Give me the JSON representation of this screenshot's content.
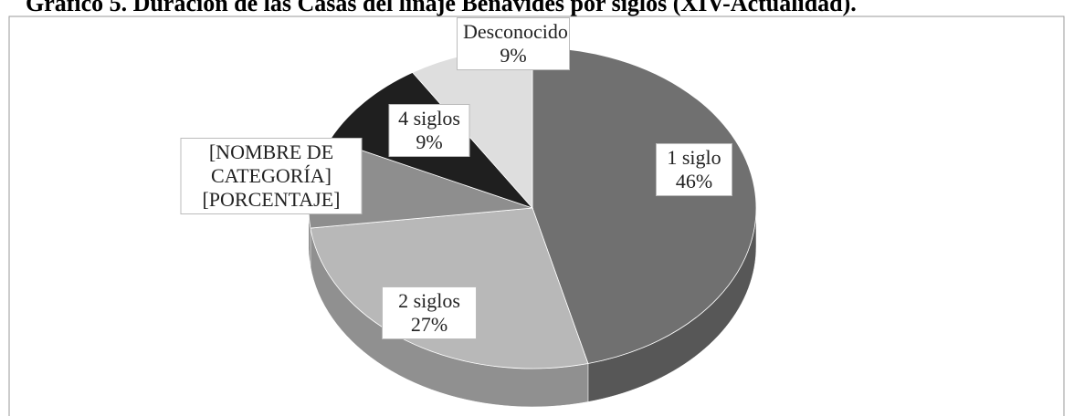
{
  "chart_data": {
    "type": "pie3d",
    "title": "Gráfico 5. Duración de las Casas del linaje Benavides por siglos (XIV-Actualidad).",
    "categories": [
      "1 siglo",
      "2 siglos",
      "[NOMBRE DE CATEGORÍA]",
      "4 siglos",
      "Desconocido"
    ],
    "values": [
      46,
      27,
      9,
      9,
      9
    ],
    "value_labels": [
      "46%",
      "27%",
      "[PORCENTAJE]",
      "9%",
      "9%"
    ],
    "colors": [
      "#707070",
      "#b8b8b8",
      "#8e8e8e",
      "#1f1f1f",
      "#dedede"
    ]
  }
}
